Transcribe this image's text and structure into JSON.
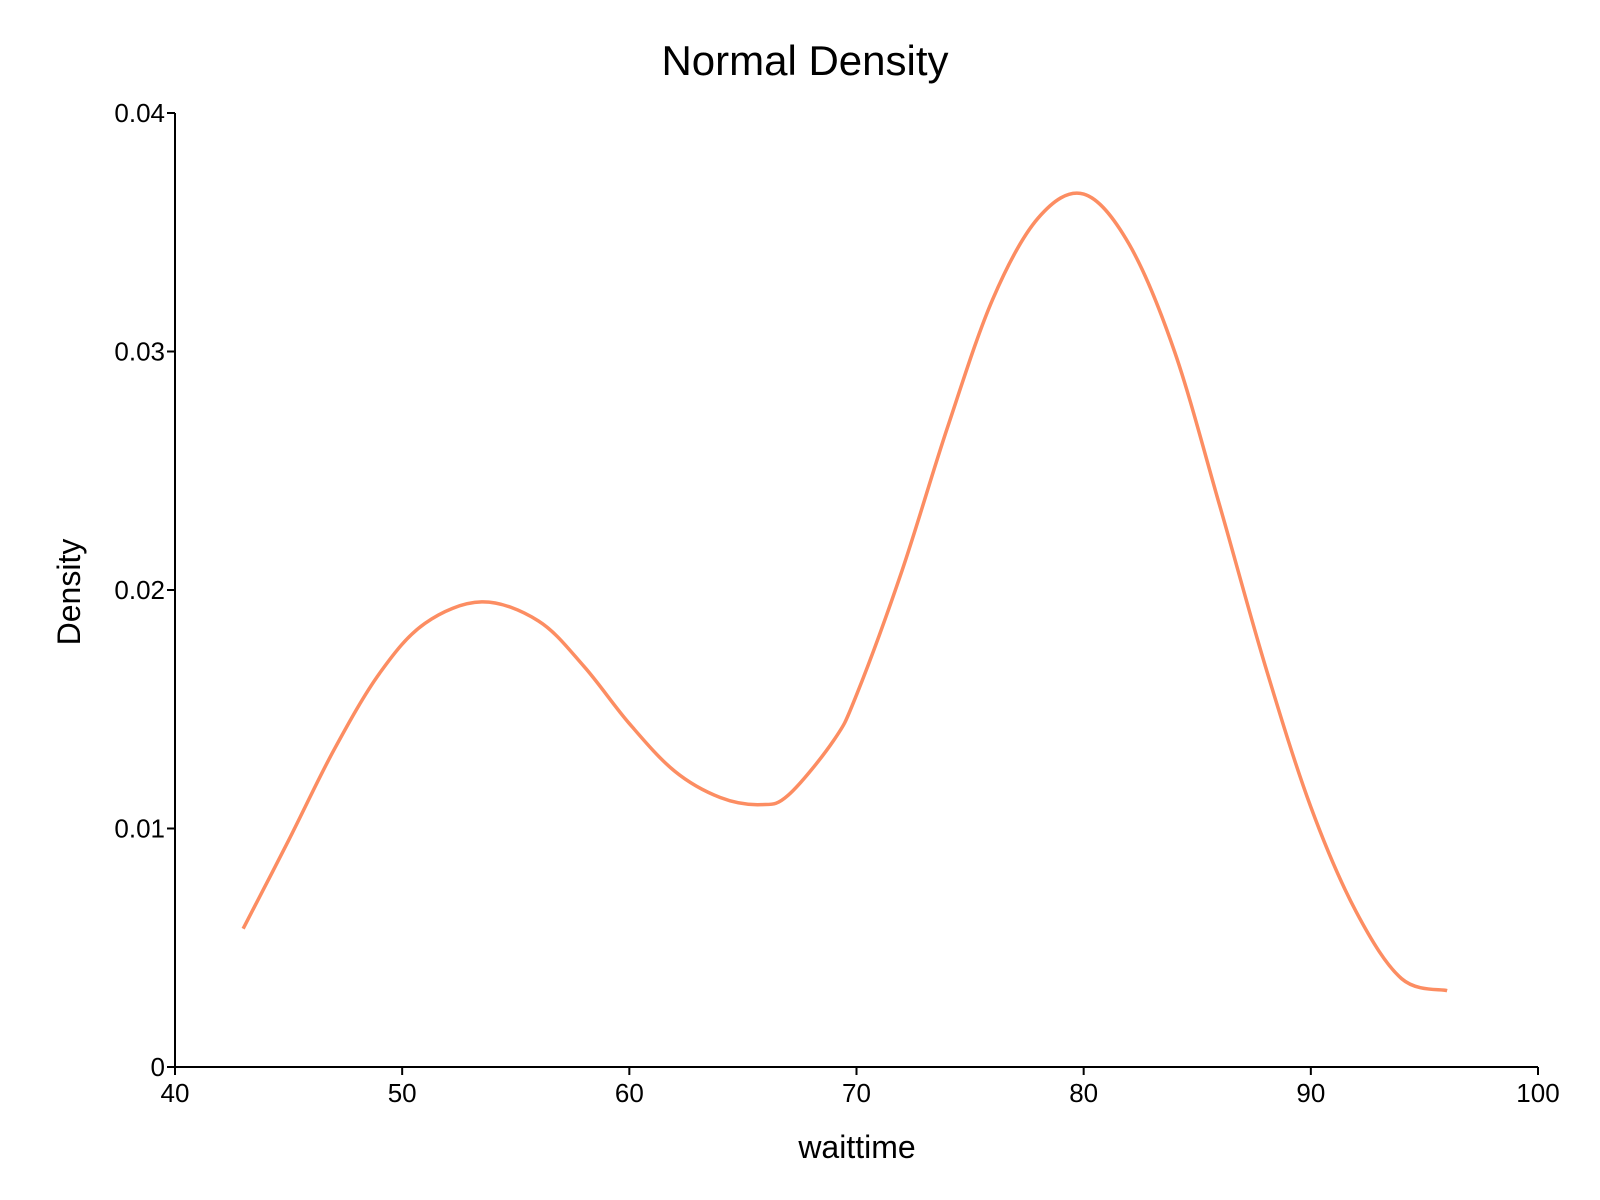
{
  "chart_data": {
    "type": "line",
    "title": "Normal Density",
    "xlabel": "waittime",
    "ylabel": "Density",
    "xlim": [
      40,
      100
    ],
    "ylim": [
      0,
      0.04
    ],
    "x_ticks": [
      40,
      50,
      60,
      70,
      80,
      90,
      100
    ],
    "y_ticks": [
      0,
      0.01,
      0.02,
      0.03,
      0.04
    ],
    "x_tick_labels": [
      "40",
      "50",
      "60",
      "70",
      "80",
      "90",
      "100"
    ],
    "y_tick_labels": [
      "0",
      "0.01",
      "0.02",
      "0.03",
      "0.04"
    ],
    "grid": false,
    "series": [
      {
        "color": "#FC8D62",
        "x": [
          43.0,
          45.0,
          47.0,
          49.0,
          51.0,
          53.5,
          56.0,
          58.0,
          60.0,
          62.0,
          64.0,
          65.8,
          67.0,
          69.0,
          70.0,
          72.0,
          74.0,
          76.0,
          78.0,
          80.0,
          82.0,
          84.0,
          86.0,
          88.0,
          90.0,
          92.0,
          94.0,
          96.0
        ],
        "y": [
          0.0058,
          0.0095,
          0.0133,
          0.0165,
          0.0186,
          0.0195,
          0.0187,
          0.0168,
          0.0144,
          0.0124,
          0.0113,
          0.011,
          0.0114,
          0.0137,
          0.0156,
          0.0208,
          0.0268,
          0.0322,
          0.0356,
          0.0366,
          0.0345,
          0.03,
          0.0235,
          0.0168,
          0.0109,
          0.0065,
          0.0037,
          0.0032
        ]
      }
    ]
  }
}
